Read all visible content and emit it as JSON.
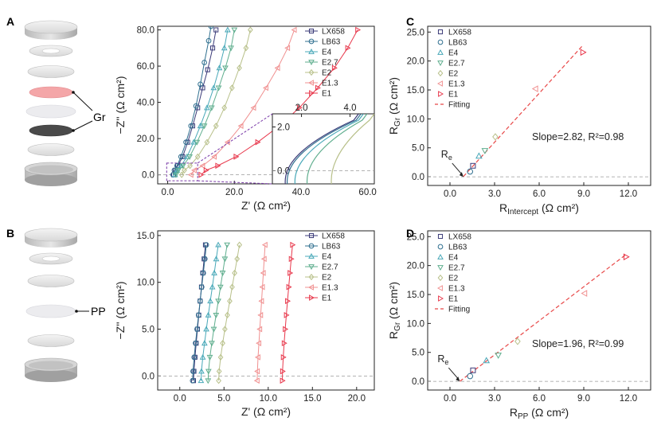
{
  "figure": {
    "panel_letters": [
      "A",
      "B",
      "C",
      "D"
    ],
    "cell_labels": {
      "A": "Gr",
      "B": "PP"
    }
  },
  "colors": {
    "LX658": "#3a3a78",
    "LB63": "#2f6f8f",
    "E4": "#48a8b8",
    "E2.7": "#5fae8e",
    "E2": "#b8c08a",
    "E1.3": "#f09090",
    "E1": "#e8384c",
    "fit": "#e84848",
    "inset_box": "#7a3aa8"
  },
  "chart_data": [
    {
      "id": "A-nyquist",
      "type": "line",
      "xlabel": "Z' (Ω cm²)",
      "ylabel": "−Z'' (Ω cm²)",
      "xlim": [
        -3,
        62
      ],
      "ylim": [
        -5,
        82
      ],
      "xticks": [
        0,
        20,
        40,
        60
      ],
      "xtick_labels": [
        "0.0",
        "20.0",
        "40.0",
        "60.0"
      ],
      "yticks": [
        0,
        20,
        40,
        60,
        80
      ],
      "ytick_labels": [
        "0.0",
        "20.0",
        "40.0",
        "60.0",
        "80.0"
      ],
      "series": [
        {
          "name": "LX658",
          "marker": "square",
          "x": [
            1.8,
            2.3,
            3.0,
            4.5,
            6.0,
            7.5,
            9.0,
            10.5,
            12.0,
            13.5,
            14.5
          ],
          "y": [
            0,
            2.5,
            5,
            10,
            18,
            27,
            37,
            48,
            58,
            70,
            80
          ]
        },
        {
          "name": "LB63",
          "marker": "circle",
          "x": [
            1.6,
            2.0,
            2.8,
            4.0,
            5.5,
            7.0,
            8.5,
            9.8,
            11.0,
            12.3,
            13.0
          ],
          "y": [
            0,
            2.5,
            5,
            10,
            18,
            27,
            38,
            50,
            62,
            74,
            82
          ]
        },
        {
          "name": "E4",
          "marker": "triangle-up",
          "x": [
            2.2,
            2.8,
            4.0,
            5.8,
            7.8,
            9.8,
            11.8,
            13.8,
            15.5,
            17.0,
            18.0
          ],
          "y": [
            0,
            2.5,
            5,
            10,
            18,
            27,
            37,
            48,
            59,
            70,
            80
          ]
        },
        {
          "name": "E2.7",
          "marker": "triangle-down",
          "x": [
            2.5,
            3.2,
            4.6,
            6.6,
            8.8,
            11.0,
            13.2,
            15.3,
            17.3,
            19.0,
            20.0
          ],
          "y": [
            0,
            2.5,
            5,
            10,
            18,
            27,
            37,
            48,
            59,
            70,
            80
          ]
        },
        {
          "name": "E2",
          "marker": "diamond",
          "x": [
            4.2,
            5.0,
            6.7,
            9.0,
            11.8,
            14.5,
            17.0,
            19.3,
            21.5,
            23.5,
            24.8
          ],
          "y": [
            0,
            2.5,
            5,
            10,
            18,
            27,
            37,
            48,
            59,
            70,
            80
          ]
        },
        {
          "name": "E1.3",
          "marker": "triangle-left",
          "x": [
            7.0,
            8.0,
            10.5,
            14.0,
            18.0,
            22.0,
            25.8,
            29.5,
            33.0,
            36.0,
            38.0
          ],
          "y": [
            0,
            2.5,
            5,
            10,
            18,
            27,
            37,
            48,
            59,
            70,
            80
          ]
        },
        {
          "name": "E1",
          "marker": "triangle-right",
          "x": [
            10.0,
            11.5,
            15.0,
            20.5,
            27.0,
            33.5,
            39.5,
            45.0,
            50.0,
            54.0,
            57.0
          ],
          "y": [
            0,
            2.5,
            5,
            10,
            18,
            27,
            37,
            48,
            59,
            70,
            80
          ]
        }
      ],
      "inset": {
        "xlim": [
          0.8,
          5.0
        ],
        "ylim": [
          -0.6,
          2.6
        ],
        "xticks": [
          2.0,
          4.0
        ],
        "xtick_labels": [
          "2.0",
          "4.0"
        ],
        "yticks": [
          0.0,
          2.0
        ],
        "ytick_labels": [
          "0.0",
          "2.0"
        ],
        "curves": [
          {
            "name": "LX658",
            "x0": 1.3,
            "x_top": 4.35
          },
          {
            "name": "LB63",
            "x0": 1.38,
            "x_top": 4.45
          },
          {
            "name": "E4",
            "x0": 1.7,
            "x_top": 4.55
          },
          {
            "name": "E2.7",
            "x0": 2.2,
            "x_top": 4.7
          },
          {
            "name": "E2",
            "x0": 3.2,
            "x_top": 5.0
          }
        ]
      }
    },
    {
      "id": "B-nyquist",
      "type": "line",
      "xlabel": "Z' (Ω cm²)",
      "ylabel": "−Z'' (Ω cm²)",
      "xlim": [
        -2.5,
        22
      ],
      "ylim": [
        -1.5,
        15.5
      ],
      "xticks": [
        0,
        5,
        10,
        15,
        20
      ],
      "xtick_labels": [
        "0.0",
        "5.0",
        "10.0",
        "15.0",
        "20.0"
      ],
      "yticks": [
        0,
        5,
        10,
        15
      ],
      "ytick_labels": [
        "0.0",
        "5.0",
        "10.0",
        "15.0"
      ],
      "series": [
        {
          "name": "LX658",
          "marker": "square",
          "x": [
            1.55,
            1.6,
            1.72,
            1.85,
            2.0,
            2.15,
            2.3,
            2.45,
            2.6,
            2.75,
            2.9
          ],
          "y": [
            -0.5,
            0.5,
            2,
            3.5,
            5,
            6.5,
            8,
            9.5,
            11,
            12.5,
            14
          ]
        },
        {
          "name": "LB63",
          "marker": "circle",
          "x": [
            1.45,
            1.5,
            1.62,
            1.78,
            1.95,
            2.12,
            2.3,
            2.48,
            2.66,
            2.84,
            3.0
          ],
          "y": [
            -0.5,
            0.5,
            2,
            3.5,
            5,
            6.5,
            8,
            9.5,
            11,
            12.5,
            14
          ]
        },
        {
          "name": "E4",
          "marker": "triangle-up",
          "x": [
            2.4,
            2.45,
            2.6,
            2.8,
            3.0,
            3.22,
            3.45,
            3.68,
            3.9,
            4.12,
            4.35
          ],
          "y": [
            -0.5,
            0.5,
            2,
            3.5,
            5,
            6.5,
            8,
            9.5,
            11,
            12.5,
            14
          ]
        },
        {
          "name": "E2.7",
          "marker": "triangle-down",
          "x": [
            3.2,
            3.25,
            3.4,
            3.62,
            3.85,
            4.1,
            4.35,
            4.6,
            4.85,
            5.1,
            5.35
          ],
          "y": [
            -0.5,
            0.5,
            2,
            3.5,
            5,
            6.5,
            8,
            9.5,
            11,
            12.5,
            14
          ]
        },
        {
          "name": "E2",
          "marker": "diamond",
          "x": [
            4.4,
            4.45,
            4.62,
            4.85,
            5.1,
            5.38,
            5.65,
            5.92,
            6.2,
            6.48,
            6.75
          ],
          "y": [
            -0.5,
            0.5,
            2,
            3.5,
            5,
            6.5,
            8,
            9.5,
            11,
            12.5,
            14
          ]
        },
        {
          "name": "E1.3",
          "marker": "triangle-left",
          "x": [
            8.75,
            8.78,
            8.85,
            8.95,
            9.05,
            9.15,
            9.25,
            9.35,
            9.45,
            9.55,
            9.65
          ],
          "y": [
            -0.5,
            0.5,
            2,
            3.5,
            5,
            6.5,
            8,
            9.5,
            11,
            12.5,
            14
          ]
        },
        {
          "name": "E1",
          "marker": "triangle-right",
          "x": [
            11.6,
            11.62,
            11.7,
            11.8,
            11.92,
            12.05,
            12.18,
            12.32,
            12.46,
            12.6,
            12.75
          ],
          "y": [
            -0.5,
            0.5,
            2,
            3.5,
            5,
            6.5,
            8,
            9.5,
            11,
            12.5,
            14
          ]
        }
      ]
    },
    {
      "id": "C-scatter",
      "type": "scatter",
      "xlabel_main": "R",
      "xlabel_sub": "Intercept",
      "xlabel_tail": " (Ω cm²)",
      "ylabel_main": "R",
      "ylabel_sub": "Gr",
      "ylabel_tail": " (Ω cm²)",
      "xlim": [
        -1.5,
        13.5
      ],
      "ylim": [
        -1.5,
        26
      ],
      "xticks": [
        0,
        3,
        6,
        9,
        12
      ],
      "xtick_labels": [
        "0.0",
        "3.0",
        "6.0",
        "9.0",
        "12.0"
      ],
      "yticks": [
        0,
        5,
        10,
        15,
        20,
        25
      ],
      "ytick_labels": [
        "0.0",
        "5.0",
        "10.0",
        "15.0",
        "20.0",
        "25.0"
      ],
      "points": [
        {
          "name": "LX658",
          "marker": "square",
          "x": 1.55,
          "y": 1.9
        },
        {
          "name": "LB63",
          "marker": "circle",
          "x": 1.35,
          "y": 0.9
        },
        {
          "name": "E4",
          "marker": "triangle-up",
          "x": 1.95,
          "y": 3.6
        },
        {
          "name": "E2.7",
          "marker": "triangle-down",
          "x": 2.35,
          "y": 4.5
        },
        {
          "name": "E2",
          "marker": "diamond",
          "x": 3.05,
          "y": 6.9
        },
        {
          "name": "E1.3",
          "marker": "triangle-left",
          "x": 5.75,
          "y": 15.2
        },
        {
          "name": "E1",
          "marker": "triangle-right",
          "x": 8.95,
          "y": 21.5
        }
      ],
      "fit": {
        "name": "Fitting",
        "slope": 2.82,
        "intercept": -2.5,
        "x_range": [
          0.9,
          8.9
        ]
      },
      "annotation": "Slope=2.82, R²=0.98",
      "re_label_main": "R",
      "re_label_sub": "e",
      "re_point": [
        0.9,
        0.0
      ]
    },
    {
      "id": "D-scatter",
      "type": "scatter",
      "xlabel_main": "R",
      "xlabel_sub": "PP",
      "xlabel_tail": " (Ω cm²)",
      "ylabel_main": "R",
      "ylabel_sub": "Gr",
      "ylabel_tail": " (Ω cm²)",
      "xlim": [
        -1.5,
        13.5
      ],
      "ylim": [
        -1.5,
        26
      ],
      "xticks": [
        0,
        3,
        6,
        9,
        12
      ],
      "xtick_labels": [
        "0.0",
        "3.0",
        "6.0",
        "9.0",
        "12.0"
      ],
      "yticks": [
        0,
        5,
        10,
        15,
        20,
        25
      ],
      "ytick_labels": [
        "0.0",
        "5.0",
        "10.0",
        "15.0",
        "20.0",
        "25.0"
      ],
      "points": [
        {
          "name": "LX658",
          "marker": "square",
          "x": 1.55,
          "y": 1.9
        },
        {
          "name": "LB63",
          "marker": "circle",
          "x": 1.35,
          "y": 0.9
        },
        {
          "name": "E4",
          "marker": "triangle-up",
          "x": 2.45,
          "y": 3.6
        },
        {
          "name": "E2.7",
          "marker": "triangle-down",
          "x": 3.25,
          "y": 4.5
        },
        {
          "name": "E2",
          "marker": "diamond",
          "x": 4.55,
          "y": 6.9
        },
        {
          "name": "E1.3",
          "marker": "triangle-left",
          "x": 9.05,
          "y": 15.2
        },
        {
          "name": "E1",
          "marker": "triangle-right",
          "x": 11.85,
          "y": 21.5
        }
      ],
      "fit": {
        "name": "Fitting",
        "slope": 1.96,
        "intercept": -1.3,
        "x_range": [
          0.66,
          11.9
        ]
      },
      "annotation": "Slope=1.96, R²=0.99",
      "re_label_main": "R",
      "re_label_sub": "e",
      "re_point": [
        0.66,
        0.0
      ]
    }
  ]
}
